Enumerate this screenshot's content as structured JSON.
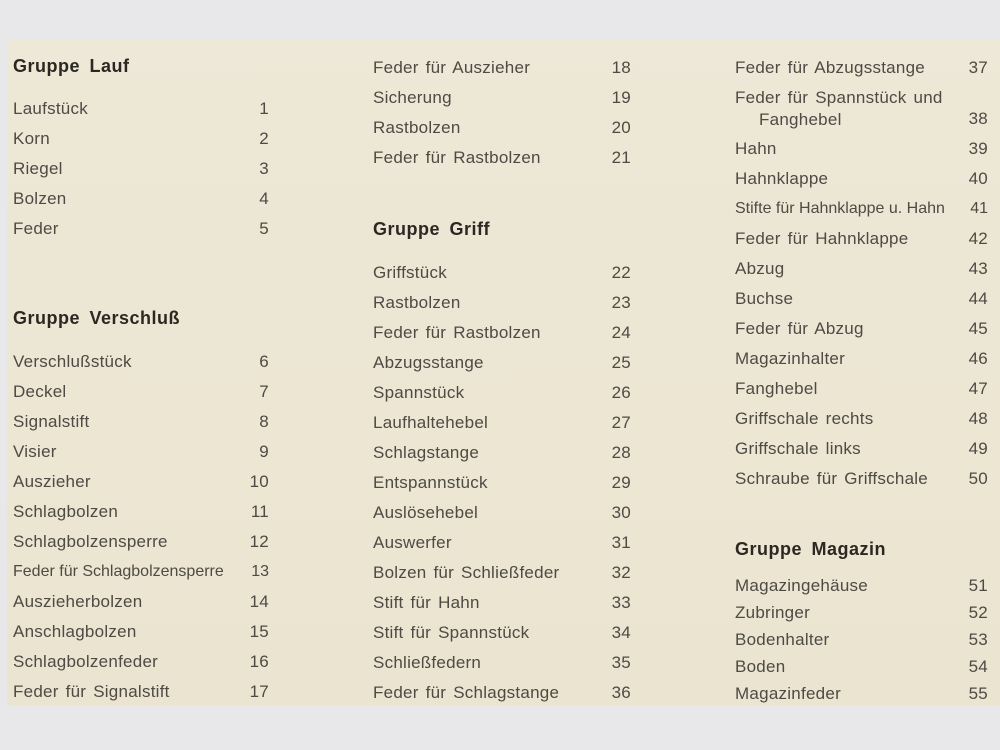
{
  "colors": {
    "background": "#e8e7e9",
    "paper": "#ece6d3",
    "heading_text": "#2b2823",
    "item_text": "#4e4a44"
  },
  "document": {
    "kind": "scanned-parts-list-page",
    "language": "de"
  },
  "columns": [
    {
      "sections": [
        {
          "heading": "Gruppe Lauf",
          "items": [
            {
              "label": "Laufstück",
              "num": "1"
            },
            {
              "label": "Korn",
              "num": "2"
            },
            {
              "label": "Riegel",
              "num": "3"
            },
            {
              "label": "Bolzen",
              "num": "4"
            },
            {
              "label": "Feder",
              "num": "5"
            }
          ]
        },
        {
          "heading": "Gruppe Verschluß",
          "items": [
            {
              "label": "Verschlußstück",
              "num": "6"
            },
            {
              "label": "Deckel",
              "num": "7"
            },
            {
              "label": "Signalstift",
              "num": "8"
            },
            {
              "label": "Visier",
              "num": "9"
            },
            {
              "label": "Auszieher",
              "num": "10"
            },
            {
              "label": "Schlagbolzen",
              "num": "11"
            },
            {
              "label": "Schlagbolzensperre",
              "num": "12"
            },
            {
              "label": "Feder für Schlagbolzensperre",
              "num": "13"
            },
            {
              "label": "Auszieherbolzen",
              "num": "14"
            },
            {
              "label": "Anschlagbolzen",
              "num": "15"
            },
            {
              "label": "Schlagbolzenfeder",
              "num": "16"
            },
            {
              "label": "Feder für Signalstift",
              "num": "17"
            }
          ]
        }
      ]
    },
    {
      "sections": [
        {
          "heading": null,
          "items": [
            {
              "label": "Feder für Auszieher",
              "num": "18"
            },
            {
              "label": "Sicherung",
              "num": "19"
            },
            {
              "label": "Rastbolzen",
              "num": "20"
            },
            {
              "label": "Feder für Rastbolzen",
              "num": "21"
            }
          ]
        },
        {
          "heading": "Gruppe Griff",
          "items": [
            {
              "label": "Griffstück",
              "num": "22"
            },
            {
              "label": "Rastbolzen",
              "num": "23"
            },
            {
              "label": "Feder für Rastbolzen",
              "num": "24"
            },
            {
              "label": "Abzugsstange",
              "num": "25"
            },
            {
              "label": "Spannstück",
              "num": "26"
            },
            {
              "label": "Laufhaltehebel",
              "num": "27"
            },
            {
              "label": "Schlagstange",
              "num": "28"
            },
            {
              "label": "Entspannstück",
              "num": "29"
            },
            {
              "label": "Auslösehebel",
              "num": "30"
            },
            {
              "label": "Auswerfer",
              "num": "31"
            },
            {
              "label": "Bolzen für Schließfeder",
              "num": "32"
            },
            {
              "label": "Stift für Hahn",
              "num": "33"
            },
            {
              "label": "Stift für Spannstück",
              "num": "34"
            },
            {
              "label": "Schließfedern",
              "num": "35"
            },
            {
              "label": "Feder für Schlagstange",
              "num": "36"
            }
          ]
        }
      ]
    },
    {
      "sections": [
        {
          "heading": null,
          "items": [
            {
              "label": "Feder für Abzugsstange",
              "num": "37"
            },
            {
              "label": "Feder für Spannstück und",
              "label2": "Fanghebel",
              "num": "38"
            },
            {
              "label": "Hahn",
              "num": "39"
            },
            {
              "label": "Hahnklappe",
              "num": "40"
            },
            {
              "label": "Stifte für Hahnklappe u. Hahn",
              "num": "41"
            },
            {
              "label": "Feder für Hahnklappe",
              "num": "42"
            },
            {
              "label": "Abzug",
              "num": "43"
            },
            {
              "label": "Buchse",
              "num": "44"
            },
            {
              "label": "Feder für Abzug",
              "num": "45"
            },
            {
              "label": "Magazinhalter",
              "num": "46"
            },
            {
              "label": "Fanghebel",
              "num": "47"
            },
            {
              "label": "Griffschale rechts",
              "num": "48"
            },
            {
              "label": "Griffschale links",
              "num": "49"
            },
            {
              "label": "Schraube für Griffschale",
              "num": "50"
            }
          ]
        },
        {
          "heading": "Gruppe Magazin",
          "items": [
            {
              "label": "Magazingehäuse",
              "num": "51"
            },
            {
              "label": "Zubringer",
              "num": "52"
            },
            {
              "label": "Bodenhalter",
              "num": "53"
            },
            {
              "label": "Boden",
              "num": "54"
            },
            {
              "label": "Magazinfeder",
              "num": "55"
            }
          ]
        }
      ]
    }
  ]
}
